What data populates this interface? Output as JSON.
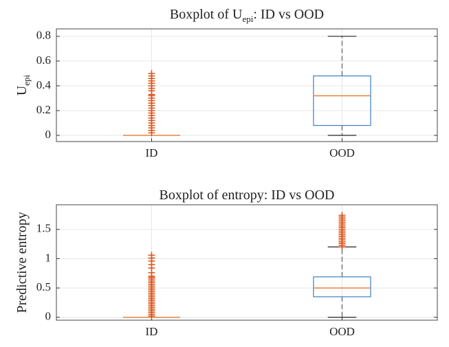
{
  "chart_data": [
    {
      "type": "boxplot",
      "title": {
        "main": "Boxplot  of  U",
        "sub": "epi",
        "rest": ":  ID  vs  OOD"
      },
      "ylabel": {
        "main": "U",
        "sub": "epi"
      },
      "categories": [
        "ID",
        "OOD"
      ],
      "ylim": [
        -0.05,
        0.86
      ],
      "yticks": [
        0,
        0.2,
        0.4,
        0.6,
        0.8
      ],
      "grid": true,
      "box_color": "#3a7fc4",
      "median_color": "#e8803a",
      "whisker_color": "#777777",
      "flier_color": "#d95319",
      "boxes": [
        {
          "whislo": 0,
          "q1": 0,
          "med": 0,
          "q3": 0,
          "whishi": 0,
          "fliers": [
            0.02,
            0.04,
            0.06,
            0.08,
            0.1,
            0.12,
            0.14,
            0.16,
            0.18,
            0.2,
            0.22,
            0.24,
            0.26,
            0.28,
            0.3,
            0.32,
            0.33,
            0.36,
            0.38,
            0.4,
            0.42,
            0.44,
            0.46,
            0.48,
            0.5
          ]
        },
        {
          "whislo": 0,
          "q1": 0.08,
          "med": 0.32,
          "q3": 0.48,
          "whishi": 0.8,
          "fliers": []
        }
      ]
    },
    {
      "type": "boxplot",
      "title": {
        "main": "Boxplot of entropy: ID vs OOD"
      },
      "ylabel": {
        "main": "Predictive entropy"
      },
      "categories": [
        "ID",
        "OOD"
      ],
      "ylim": [
        -0.05,
        1.92
      ],
      "yticks": [
        0,
        0.5,
        1,
        1.5
      ],
      "grid": true,
      "box_color": "#3a7fc4",
      "median_color": "#e8803a",
      "whisker_color": "#777777",
      "flier_color": "#d95319",
      "boxes": [
        {
          "whislo": 0,
          "q1": 0,
          "med": 0,
          "q3": 0,
          "whishi": 0,
          "fliers": [
            0.02,
            0.05,
            0.08,
            0.11,
            0.14,
            0.17,
            0.2,
            0.23,
            0.26,
            0.29,
            0.32,
            0.35,
            0.38,
            0.41,
            0.44,
            0.47,
            0.5,
            0.53,
            0.56,
            0.59,
            0.62,
            0.65,
            0.68,
            0.7,
            0.76,
            0.84,
            0.9,
            0.96,
            1.01,
            1.06
          ]
        },
        {
          "whislo": 0,
          "q1": 0.35,
          "med": 0.5,
          "q3": 0.69,
          "whishi": 1.2,
          "fliers": [
            1.2,
            1.23,
            1.26,
            1.29,
            1.32,
            1.35,
            1.38,
            1.41,
            1.44,
            1.47,
            1.5,
            1.53,
            1.56,
            1.59,
            1.62,
            1.65,
            1.68,
            1.71,
            1.74
          ]
        }
      ]
    }
  ]
}
